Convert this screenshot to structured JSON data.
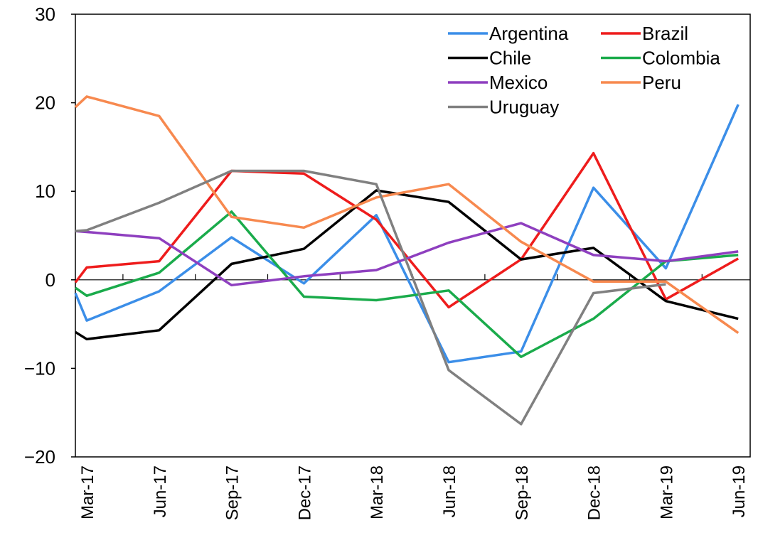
{
  "chart_data": {
    "type": "line",
    "categories": [
      null,
      "Mar-17",
      "Jun-17",
      "Sep-17",
      "Dec-17",
      "Mar-18",
      "Jun-18",
      "Sep-18",
      "Dec-18",
      "Mar-19",
      "Jun-19"
    ],
    "series": [
      {
        "name": "Argentina",
        "color": "#3b8ee8",
        "values": [
          -1.5,
          -4.6,
          -1.3,
          4.8,
          -0.4,
          7.3,
          -9.3,
          -8.1,
          10.4,
          1.3,
          19.8
        ]
      },
      {
        "name": "Brazil",
        "color": "#ee1c1c",
        "values": [
          -0.3,
          1.4,
          2.1,
          12.3,
          12.0,
          6.8,
          -3.1,
          2.3,
          14.3,
          -2.2,
          2.4
        ]
      },
      {
        "name": "Chile",
        "color": "#000000",
        "values": [
          -5.9,
          -6.7,
          -5.7,
          1.8,
          3.5,
          10.1,
          8.8,
          2.3,
          3.6,
          -2.4,
          -4.4
        ]
      },
      {
        "name": "Colombia",
        "color": "#1aab4b",
        "values": [
          -0.9,
          -1.8,
          0.8,
          7.7,
          -1.9,
          -2.3,
          -1.2,
          -8.7,
          -4.4,
          2.1,
          2.8
        ]
      },
      {
        "name": "Mexico",
        "color": "#8e3fbf",
        "values": [
          5.5,
          5.4,
          4.7,
          -0.6,
          0.4,
          1.1,
          4.2,
          6.4,
          2.8,
          2.1,
          3.2
        ]
      },
      {
        "name": "Peru",
        "color": "#f7894f",
        "values": [
          19.5,
          20.7,
          18.5,
          7.1,
          5.9,
          9.3,
          10.8,
          4.3,
          -0.2,
          -0.2,
          -6.0
        ]
      },
      {
        "name": "Uruguay",
        "color": "#808080",
        "values": [
          5.5,
          5.6,
          8.7,
          12.3,
          12.3,
          10.8,
          -10.2,
          -16.3,
          -1.5,
          -0.5,
          null
        ]
      }
    ],
    "ylim": [
      -20,
      30
    ],
    "yticks": [
      {
        "value": -20,
        "label": "−20"
      },
      {
        "value": -10,
        "label": "−10"
      },
      0,
      10,
      20,
      30
    ]
  }
}
